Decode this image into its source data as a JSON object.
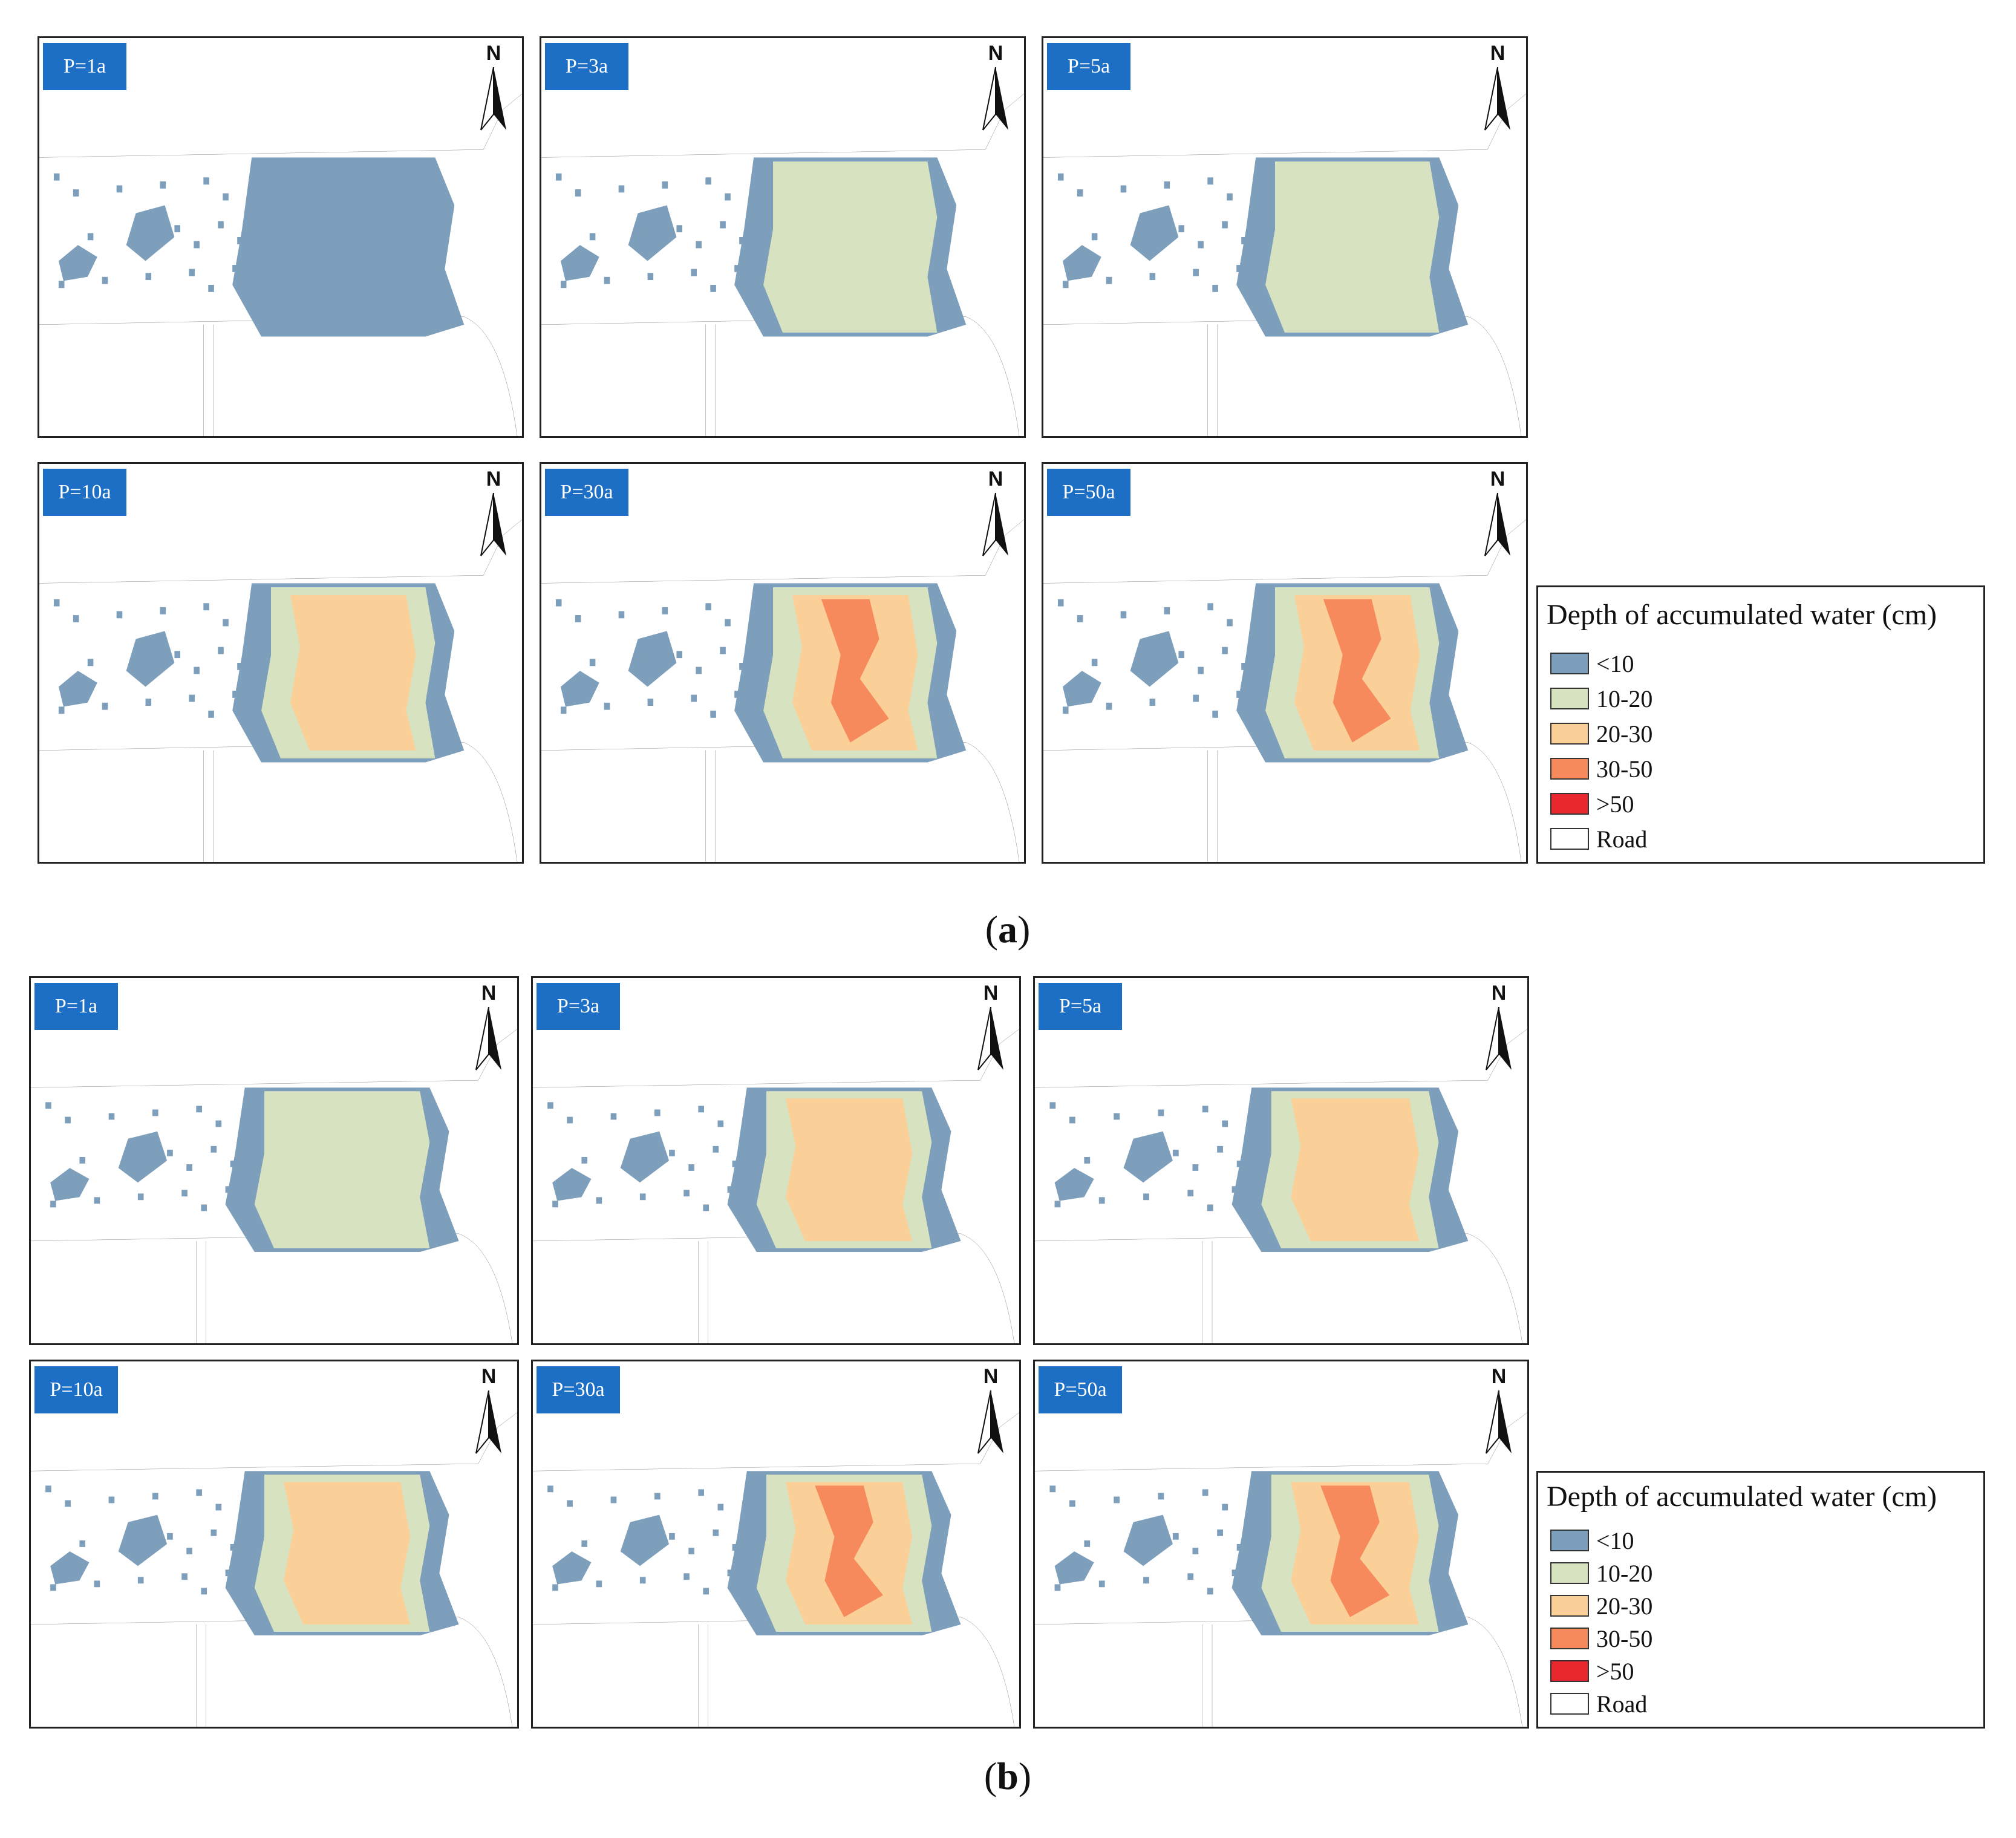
{
  "colors": {
    "lt10": "#7e9fbb",
    "10_20": "#d7e2c0",
    "20_30": "#fbcf98",
    "30_50": "#f68a5c",
    "gt50": "#e8282c",
    "road": "#ffffff",
    "label_bg": "#1c6fc4",
    "road_line": "#888888"
  },
  "north_label": "N",
  "figures": [
    {
      "caption_letter": "a",
      "panels": [
        {
          "label": "P=1a",
          "zones": [
            "lt10"
          ]
        },
        {
          "label": "P=3a",
          "zones": [
            "lt10",
            "10_20"
          ]
        },
        {
          "label": "P=5a",
          "zones": [
            "lt10",
            "10_20"
          ]
        },
        {
          "label": "P=10a",
          "zones": [
            "lt10",
            "10_20",
            "20_30"
          ]
        },
        {
          "label": "P=30a",
          "zones": [
            "lt10",
            "10_20",
            "20_30",
            "30_50"
          ]
        },
        {
          "label": "P=50a",
          "zones": [
            "lt10",
            "10_20",
            "20_30",
            "30_50"
          ]
        }
      ],
      "legend": {
        "title": "Depth of accumulated water (cm)",
        "items": [
          {
            "label": "<10",
            "color_key": "lt10"
          },
          {
            "label": "10-20",
            "color_key": "10_20"
          },
          {
            "label": "20-30",
            "color_key": "20_30"
          },
          {
            "label": "30-50",
            "color_key": "30_50"
          },
          {
            "label": ">50",
            "color_key": "gt50"
          },
          {
            "label": "Road",
            "color_key": "road"
          }
        ]
      }
    },
    {
      "caption_letter": "b",
      "panels": [
        {
          "label": "P=1a",
          "zones": [
            "lt10",
            "10_20"
          ]
        },
        {
          "label": "P=3a",
          "zones": [
            "lt10",
            "10_20",
            "20_30"
          ]
        },
        {
          "label": "P=5a",
          "zones": [
            "lt10",
            "10_20",
            "20_30"
          ]
        },
        {
          "label": "P=10a",
          "zones": [
            "lt10",
            "10_20",
            "20_30"
          ]
        },
        {
          "label": "P=30a",
          "zones": [
            "lt10",
            "10_20",
            "20_30",
            "30_50"
          ]
        },
        {
          "label": "P=50a",
          "zones": [
            "lt10",
            "10_20",
            "20_30",
            "30_50"
          ]
        }
      ],
      "legend": {
        "title": "Depth of accumulated water (cm)",
        "items": [
          {
            "label": "<10",
            "color_key": "lt10"
          },
          {
            "label": "10-20",
            "color_key": "10_20"
          },
          {
            "label": "20-30",
            "color_key": "20_30"
          },
          {
            "label": "30-50",
            "color_key": "30_50"
          },
          {
            "label": ">50",
            "color_key": "gt50"
          },
          {
            "label": "Road",
            "color_key": "road"
          }
        ]
      }
    }
  ]
}
